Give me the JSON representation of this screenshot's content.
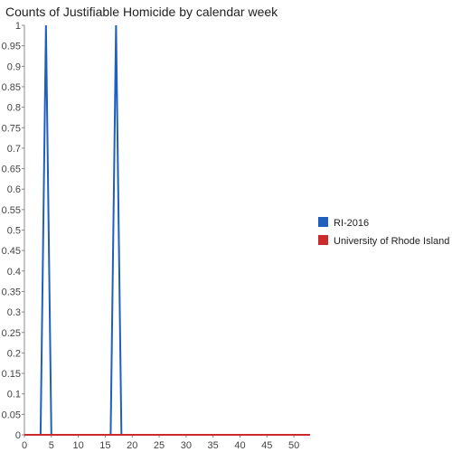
{
  "chart_data": {
    "type": "line",
    "title": "Counts of Justifiable Homicide by calendar week",
    "xlabel": "",
    "ylabel": "",
    "xlim": [
      0,
      53
    ],
    "ylim": [
      0,
      1
    ],
    "x_ticks": [
      0,
      5,
      10,
      15,
      20,
      25,
      30,
      35,
      40,
      45,
      50
    ],
    "y_ticks": [
      "0",
      "0.05",
      "0.1",
      "0.15",
      "0.2",
      "0.25",
      "0.3",
      "0.35",
      "0.4",
      "0.45",
      "0.5",
      "0.55",
      "0.6",
      "0.65",
      "0.7",
      "0.75",
      "0.8",
      "0.85",
      "0.9",
      "0.95",
      "1"
    ],
    "grid": false,
    "legend_position": "right",
    "series": [
      {
        "name": "RI-2016",
        "color": "#1f5fbf",
        "points": [
          [
            0,
            0
          ],
          [
            1,
            0
          ],
          [
            2,
            0
          ],
          [
            3,
            0
          ],
          [
            4,
            1
          ],
          [
            5,
            0
          ],
          [
            6,
            0
          ],
          [
            7,
            0
          ],
          [
            8,
            0
          ],
          [
            9,
            0
          ],
          [
            10,
            0
          ],
          [
            11,
            0
          ],
          [
            12,
            0
          ],
          [
            13,
            0
          ],
          [
            14,
            0
          ],
          [
            15,
            0
          ],
          [
            16,
            0
          ],
          [
            17,
            1
          ],
          [
            18,
            0
          ],
          [
            19,
            0
          ],
          [
            20,
            0
          ],
          [
            21,
            0
          ],
          [
            22,
            0
          ],
          [
            23,
            0
          ],
          [
            24,
            0
          ],
          [
            25,
            0
          ],
          [
            26,
            0
          ],
          [
            27,
            0
          ],
          [
            28,
            0
          ],
          [
            29,
            0
          ],
          [
            30,
            0
          ],
          [
            31,
            0
          ],
          [
            32,
            0
          ],
          [
            33,
            0
          ],
          [
            34,
            0
          ],
          [
            35,
            0
          ],
          [
            36,
            0
          ],
          [
            37,
            0
          ],
          [
            38,
            0
          ],
          [
            39,
            0
          ],
          [
            40,
            0
          ],
          [
            41,
            0
          ],
          [
            42,
            0
          ],
          [
            43,
            0
          ],
          [
            44,
            0
          ],
          [
            45,
            0
          ],
          [
            46,
            0
          ],
          [
            47,
            0
          ],
          [
            48,
            0
          ],
          [
            49,
            0
          ],
          [
            50,
            0
          ],
          [
            51,
            0
          ],
          [
            52,
            0
          ],
          [
            53,
            0
          ]
        ]
      },
      {
        "name": "University of Rhode Island",
        "color": "#cc2b2b",
        "points": [
          [
            0,
            0
          ],
          [
            53,
            0
          ]
        ]
      }
    ]
  }
}
